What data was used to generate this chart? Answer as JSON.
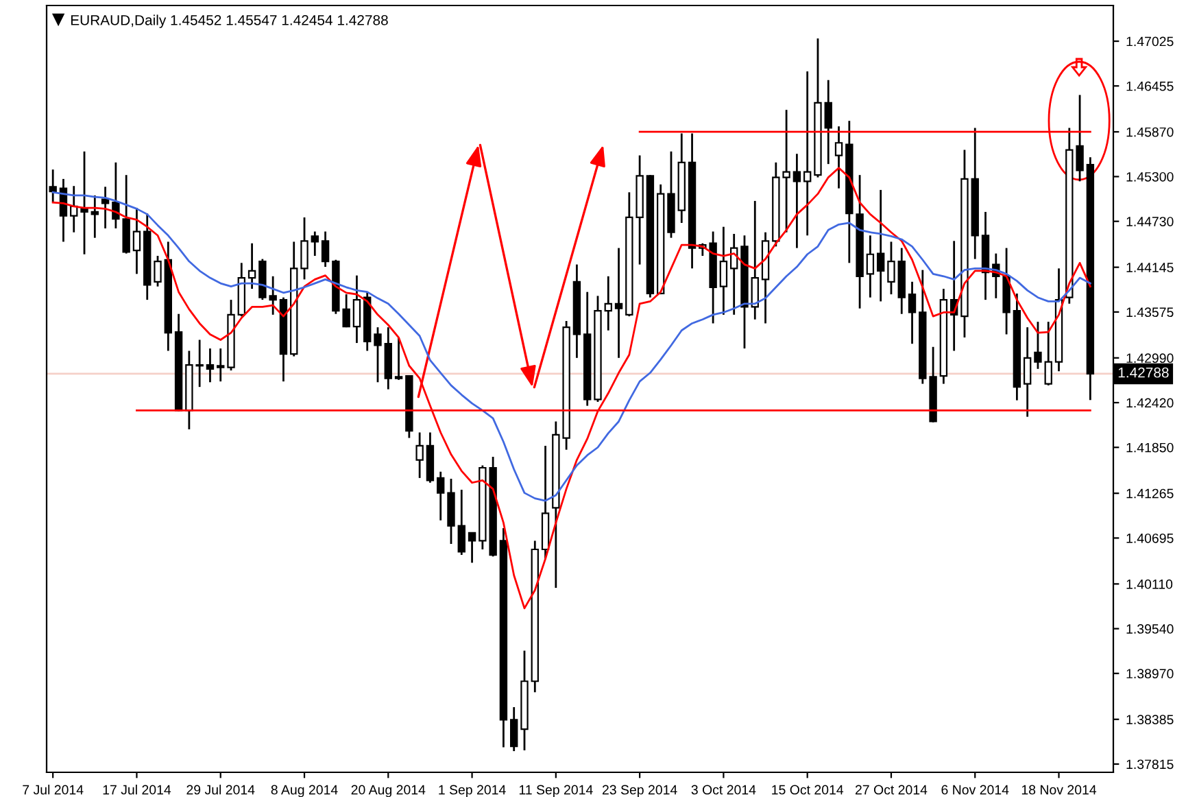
{
  "chart_data": {
    "type": "candlestick",
    "title": "EURAUD,Daily 1.45452 1.45547 1.42454 1.42788",
    "categories": [
      "7 Jul 2014",
      null,
      null,
      null,
      null,
      null,
      null,
      null,
      "17 Jul 2014",
      null,
      null,
      null,
      null,
      null,
      null,
      null,
      "29 Jul 2014",
      null,
      null,
      null,
      null,
      null,
      null,
      null,
      "8 Aug 2014",
      null,
      null,
      null,
      null,
      null,
      null,
      null,
      "20 Aug 2014",
      null,
      null,
      null,
      null,
      null,
      null,
      null,
      "1 Sep 2014",
      null,
      null,
      null,
      null,
      null,
      null,
      null,
      "11 Sep 2014",
      null,
      null,
      null,
      null,
      null,
      null,
      null,
      "23 Sep 2014",
      null,
      null,
      null,
      null,
      null,
      null,
      null,
      "3 Oct 2014",
      null,
      null,
      null,
      null,
      null,
      null,
      null,
      "15 Oct 2014",
      null,
      null,
      null,
      null,
      null,
      null,
      null,
      "27 Oct 2014",
      null,
      null,
      null,
      null,
      null,
      null,
      null,
      "6 Nov 2014",
      null,
      null,
      null,
      null,
      null,
      null,
      null,
      "18 Nov 2014",
      null,
      null,
      null
    ],
    "ohlc": [
      [
        1.4517,
        1.4539,
        1.4497,
        1.4511
      ],
      [
        1.4515,
        1.4527,
        1.4447,
        1.448
      ],
      [
        1.448,
        1.4518,
        1.4459,
        1.4492
      ],
      [
        1.4489,
        1.4562,
        1.4431,
        1.4485
      ],
      [
        1.4485,
        1.4506,
        1.4452,
        1.4482
      ],
      [
        1.4501,
        1.4517,
        1.4464,
        1.4496
      ],
      [
        1.4497,
        1.4548,
        1.4464,
        1.4476
      ],
      [
        1.4476,
        1.4532,
        1.4432,
        1.4434
      ],
      [
        1.4436,
        1.449,
        1.4406,
        1.446
      ],
      [
        1.446,
        1.4483,
        1.4373,
        1.4392
      ],
      [
        1.4396,
        1.4429,
        1.439,
        1.4422
      ],
      [
        1.4424,
        1.4447,
        1.4308,
        1.4331
      ],
      [
        1.4332,
        1.4355,
        1.4231,
        1.4232
      ],
      [
        1.4232,
        1.4308,
        1.4208,
        1.429
      ],
      [
        1.429,
        1.4322,
        1.4262,
        1.4289
      ],
      [
        1.429,
        1.4311,
        1.4268,
        1.4285
      ],
      [
        1.4289,
        1.4311,
        1.4269,
        1.4287
      ],
      [
        1.4287,
        1.4373,
        1.4283,
        1.4354
      ],
      [
        1.4354,
        1.442,
        1.4352,
        1.4401
      ],
      [
        1.4401,
        1.4445,
        1.4387,
        1.441
      ],
      [
        1.4422,
        1.4425,
        1.4373,
        1.4376
      ],
      [
        1.4378,
        1.4403,
        1.4354,
        1.4373
      ],
      [
        1.4373,
        1.4376,
        1.4269,
        1.4304
      ],
      [
        1.4304,
        1.4447,
        1.4301,
        1.4413
      ],
      [
        1.4413,
        1.4478,
        1.4399,
        1.4448
      ],
      [
        1.4454,
        1.446,
        1.4429,
        1.4447
      ],
      [
        1.4448,
        1.446,
        1.4415,
        1.4422
      ],
      [
        1.4422,
        1.4424,
        1.4355,
        1.4359
      ],
      [
        1.4361,
        1.438,
        1.4338,
        1.4339
      ],
      [
        1.4339,
        1.4404,
        1.4318,
        1.4373
      ],
      [
        1.4376,
        1.4383,
        1.4308,
        1.432
      ],
      [
        1.4329,
        1.4338,
        1.4268,
        1.4315
      ],
      [
        1.4317,
        1.4338,
        1.4259,
        1.4273
      ],
      [
        1.4275,
        1.4325,
        1.4271,
        1.4273
      ],
      [
        1.4276,
        1.4276,
        1.4197,
        1.4206
      ],
      [
        1.4169,
        1.4204,
        1.4146,
        1.4187
      ],
      [
        1.4187,
        1.4204,
        1.414,
        1.4143
      ],
      [
        1.4146,
        1.4154,
        1.4092,
        1.4127
      ],
      [
        1.4127,
        1.4145,
        1.4062,
        1.4085
      ],
      [
        1.4085,
        1.4131,
        1.4048,
        1.4052
      ],
      [
        1.4076,
        1.4076,
        1.4038,
        1.4066
      ],
      [
        1.4066,
        1.4162,
        1.4055,
        1.4159
      ],
      [
        1.4159,
        1.4173,
        1.4046,
        1.4048
      ],
      [
        1.4066,
        1.4082,
        1.3803,
        1.3838
      ],
      [
        1.3838,
        1.3854,
        1.3798,
        1.3804
      ],
      [
        1.3826,
        1.3926,
        1.3799,
        1.3887
      ],
      [
        1.3887,
        1.4066,
        1.3873,
        1.4055
      ],
      [
        1.4055,
        1.4187,
        1.4043,
        1.4101
      ],
      [
        1.4108,
        1.4218,
        1.4006,
        1.4201
      ],
      [
        1.4197,
        1.4346,
        1.4182,
        1.4338
      ],
      [
        1.4396,
        1.4418,
        1.4299,
        1.4329
      ],
      [
        1.4329,
        1.4383,
        1.4238,
        1.4246
      ],
      [
        1.4246,
        1.4378,
        1.4243,
        1.4359
      ],
      [
        1.4359,
        1.4403,
        1.4334,
        1.4368
      ],
      [
        1.4368,
        1.4439,
        1.4299,
        1.4362
      ],
      [
        1.4354,
        1.451,
        1.4352,
        1.4478
      ],
      [
        1.4478,
        1.4557,
        1.4418,
        1.4531
      ],
      [
        1.4531,
        1.4532,
        1.4376,
        1.4381
      ],
      [
        1.4381,
        1.452,
        1.438,
        1.4508
      ],
      [
        1.4508,
        1.4562,
        1.4452,
        1.4459
      ],
      [
        1.4487,
        1.4585,
        1.4471,
        1.4548
      ],
      [
        1.4548,
        1.4585,
        1.4413,
        1.4439
      ],
      [
        1.4439,
        1.4445,
        1.4429,
        1.4443
      ],
      [
        1.4445,
        1.446,
        1.4343,
        1.4389
      ],
      [
        1.439,
        1.4466,
        1.4354,
        1.4422
      ],
      [
        1.4413,
        1.4457,
        1.4354,
        1.4439
      ],
      [
        1.4441,
        1.4455,
        1.4311,
        1.4364
      ],
      [
        1.4364,
        1.4499,
        1.4348,
        1.4401
      ],
      [
        1.4399,
        1.4459,
        1.4343,
        1.4448
      ],
      [
        1.4448,
        1.4548,
        1.4441,
        1.4529
      ],
      [
        1.4529,
        1.4615,
        1.4459,
        1.4536
      ],
      [
        1.4536,
        1.4559,
        1.4439,
        1.4524
      ],
      [
        1.4524,
        1.4664,
        1.4455,
        1.4536
      ],
      [
        1.4532,
        1.4706,
        1.4529,
        1.4624
      ],
      [
        1.4624,
        1.4653,
        1.4546,
        1.4592
      ],
      [
        1.4557,
        1.4594,
        1.4515,
        1.4573
      ],
      [
        1.4571,
        1.4601,
        1.442,
        1.4483
      ],
      [
        1.4482,
        1.4532,
        1.4362,
        1.4403
      ],
      [
        1.4406,
        1.4455,
        1.4376,
        1.4431
      ],
      [
        1.4432,
        1.4513,
        1.4371,
        1.441
      ],
      [
        1.4396,
        1.4447,
        1.438,
        1.4422
      ],
      [
        1.4422,
        1.4439,
        1.4355,
        1.4376
      ],
      [
        1.438,
        1.4396,
        1.4317,
        1.4357
      ],
      [
        1.4357,
        1.4411,
        1.4266,
        1.4273
      ],
      [
        1.4275,
        1.4313,
        1.4217,
        1.4218
      ],
      [
        1.4276,
        1.4387,
        1.4266,
        1.4373
      ],
      [
        1.4373,
        1.4448,
        1.4308,
        1.4354
      ],
      [
        1.4352,
        1.4564,
        1.4325,
        1.4527
      ],
      [
        1.4527,
        1.4592,
        1.4425,
        1.4455
      ],
      [
        1.4455,
        1.4485,
        1.4373,
        1.4408
      ],
      [
        1.4418,
        1.4432,
        1.4375,
        1.4403
      ],
      [
        1.4403,
        1.4439,
        1.4329,
        1.4357
      ],
      [
        1.4359,
        1.4381,
        1.4245,
        1.4262
      ],
      [
        1.4266,
        1.4338,
        1.4224,
        1.4299
      ],
      [
        1.4306,
        1.4345,
        1.4285,
        1.4294
      ],
      [
        1.4266,
        1.4345,
        1.4264,
        1.4294
      ],
      [
        1.4294,
        1.4413,
        1.4282,
        1.4373
      ],
      [
        1.4376,
        1.4592,
        1.4368,
        1.4564
      ],
      [
        1.4569,
        1.4634,
        1.4524,
        1.4538
      ],
      [
        1.45452,
        1.45547,
        1.42454,
        1.42788
      ]
    ],
    "series": [
      {
        "type": "line",
        "color": "#ff0000",
        "values": [
          1.4497,
          1.4496,
          1.4492,
          1.449,
          1.449,
          1.4489,
          1.4485,
          1.4478,
          1.4475,
          1.4466,
          1.4455,
          1.4424,
          1.4383,
          1.4361,
          1.4343,
          1.4329,
          1.4322,
          1.4331,
          1.435,
          1.4364,
          1.4364,
          1.4366,
          1.4352,
          1.4368,
          1.439,
          1.4399,
          1.4404,
          1.439,
          1.4382,
          1.438,
          1.4371,
          1.4354,
          1.4341,
          1.4325,
          1.4289,
          1.4273,
          1.4238,
          1.4204,
          1.4176,
          1.4155,
          1.414,
          1.4143,
          1.4132,
          1.4089,
          1.4022,
          1.398,
          1.4003,
          1.4043,
          1.4089,
          1.4132,
          1.4169,
          1.4196,
          1.4231,
          1.4254,
          1.428,
          1.4303,
          1.4368,
          1.4371,
          1.4383,
          1.4413,
          1.4443,
          1.4443,
          1.4441,
          1.4432,
          1.4429,
          1.4432,
          1.4418,
          1.4413,
          1.4425,
          1.4445,
          1.4462,
          1.4482,
          1.4494,
          1.4508,
          1.4529,
          1.4541,
          1.4529,
          1.4497,
          1.4482,
          1.4471,
          1.4459,
          1.4448,
          1.4424,
          1.4389,
          1.4352,
          1.4357,
          1.4357,
          1.4394,
          1.441,
          1.441,
          1.4408,
          1.4403,
          1.4373,
          1.435,
          1.4331,
          1.4332,
          1.4354,
          1.4394,
          1.442,
          1.439
        ]
      },
      {
        "type": "line",
        "color": "#4169e1",
        "values": [
          1.451,
          1.4508,
          1.4506,
          1.4506,
          1.4504,
          1.4503,
          1.4499,
          1.4494,
          1.4489,
          1.4482,
          1.4468,
          1.4455,
          1.4439,
          1.4422,
          1.441,
          1.4401,
          1.4394,
          1.439,
          1.4394,
          1.4394,
          1.4392,
          1.4387,
          1.4382,
          1.4385,
          1.4389,
          1.4394,
          1.4399,
          1.4394,
          1.4389,
          1.4385,
          1.4383,
          1.4375,
          1.4368,
          1.4355,
          1.4341,
          1.4327,
          1.4296,
          1.428,
          1.4264,
          1.4252,
          1.4241,
          1.4232,
          1.4222,
          1.4192,
          1.4157,
          1.4127,
          1.412,
          1.4117,
          1.4124,
          1.4143,
          1.4162,
          1.4175,
          1.4185,
          1.4203,
          1.4218,
          1.4245,
          1.4269,
          1.428,
          1.4297,
          1.4315,
          1.4334,
          1.4343,
          1.4348,
          1.4354,
          1.4357,
          1.4362,
          1.4368,
          1.4368,
          1.4375,
          1.4389,
          1.4403,
          1.4415,
          1.4431,
          1.4441,
          1.4462,
          1.4469,
          1.4471,
          1.4462,
          1.4459,
          1.4457,
          1.4454,
          1.445,
          1.4441,
          1.4424,
          1.4406,
          1.4403,
          1.4399,
          1.4411,
          1.4413,
          1.4413,
          1.4411,
          1.4406,
          1.4397,
          1.4385,
          1.4376,
          1.4371,
          1.4371,
          1.4385,
          1.4401,
          1.4394
        ]
      },
      {
        "type": "line",
        "color": "#ff0000",
        "values": [
          null,
          null,
          null,
          null,
          null,
          null,
          null,
          null,
          1.4232,
          1.4232,
          1.4232,
          1.4232,
          1.4232,
          1.4232,
          1.4232,
          1.4232,
          1.4232,
          1.4232,
          1.4232,
          1.4232,
          1.4232,
          1.4232,
          1.4232,
          1.4232,
          1.4232,
          1.4232,
          1.4232,
          1.4232,
          1.4232,
          1.4232,
          1.4232,
          1.4232,
          1.4232,
          1.4232,
          1.4232,
          1.4232,
          1.4232,
          1.4232,
          1.4232,
          1.4232,
          1.4232,
          1.4232,
          1.4232,
          1.4232,
          1.4232,
          1.4232,
          1.4232,
          1.4232,
          1.4232,
          1.4232,
          1.4232,
          1.4232,
          1.4232,
          1.4232,
          1.4232,
          1.4232,
          1.4232,
          1.4232,
          1.4232,
          1.4232,
          1.4232,
          1.4232,
          1.4232,
          1.4232,
          1.4232,
          1.4232,
          1.4232,
          1.4232,
          1.4232,
          1.4232,
          1.4232,
          1.4232,
          1.4232,
          1.4232,
          1.4232,
          1.4232,
          1.4232,
          1.4232,
          1.4232,
          1.4232,
          1.4232,
          1.4232,
          1.4232,
          1.4232,
          1.4232,
          1.4232,
          1.4232,
          1.4232,
          1.4232,
          1.4232,
          1.4232,
          1.4232,
          1.4232,
          1.4232,
          1.4232,
          1.4232,
          1.4232,
          1.4232,
          1.4232,
          1.4232
        ]
      },
      {
        "type": "line",
        "color": "#ff0000",
        "values": [
          null,
          null,
          null,
          null,
          null,
          null,
          null,
          null,
          null,
          null,
          null,
          null,
          null,
          null,
          null,
          null,
          null,
          null,
          null,
          null,
          null,
          null,
          null,
          null,
          null,
          null,
          null,
          null,
          null,
          null,
          null,
          null,
          null,
          null,
          null,
          null,
          null,
          null,
          null,
          null,
          null,
          null,
          null,
          null,
          null,
          null,
          null,
          null,
          null,
          null,
          null,
          null,
          null,
          null,
          null,
          null,
          1.4587,
          1.4587,
          1.4587,
          1.4587,
          1.4587,
          1.4587,
          1.4587,
          1.4587,
          1.4587,
          1.4587,
          1.4587,
          1.4587,
          1.4587,
          1.4587,
          1.4587,
          1.4587,
          1.4587,
          1.4587,
          1.4587,
          1.4587,
          1.4587,
          1.4587,
          1.4587,
          1.4587,
          1.4587,
          1.4587,
          1.4587,
          1.4587,
          1.4587,
          1.4587,
          1.4587,
          1.4587,
          1.4587,
          1.4587,
          1.4587,
          1.4587,
          1.4587,
          1.4587,
          1.4587,
          1.4587,
          1.4587,
          1.4587,
          1.4587,
          1.4587
        ]
      }
    ],
    "ylim": [
      1.3771,
      1.4748
    ],
    "yticks": [
      1.47025,
      1.46455,
      {
        "value": 1.4587,
        "label": "1.45870"
      },
      {
        "value": 1.453,
        "label": "1.45300"
      },
      {
        "value": 1.4473,
        "label": "1.44730"
      },
      1.44145,
      1.43575,
      {
        "value": 1.4299,
        "label": "1.42990"
      },
      {
        "value": 1.4242,
        "label": "1.42420"
      },
      {
        "value": 1.4185,
        "label": "1.41850"
      },
      1.41265,
      1.40695,
      {
        "value": 1.4011,
        "label": "1.40110"
      },
      {
        "value": 1.3954,
        "label": "1.39540"
      },
      {
        "value": 1.3897,
        "label": "1.38970"
      },
      1.38385,
      1.37815
    ],
    "ref_lines": [
      {
        "axis": "y",
        "value": 1.42788,
        "label": "1.42788",
        "color": "#f5d0c8",
        "line_style": "solid"
      }
    ]
  }
}
